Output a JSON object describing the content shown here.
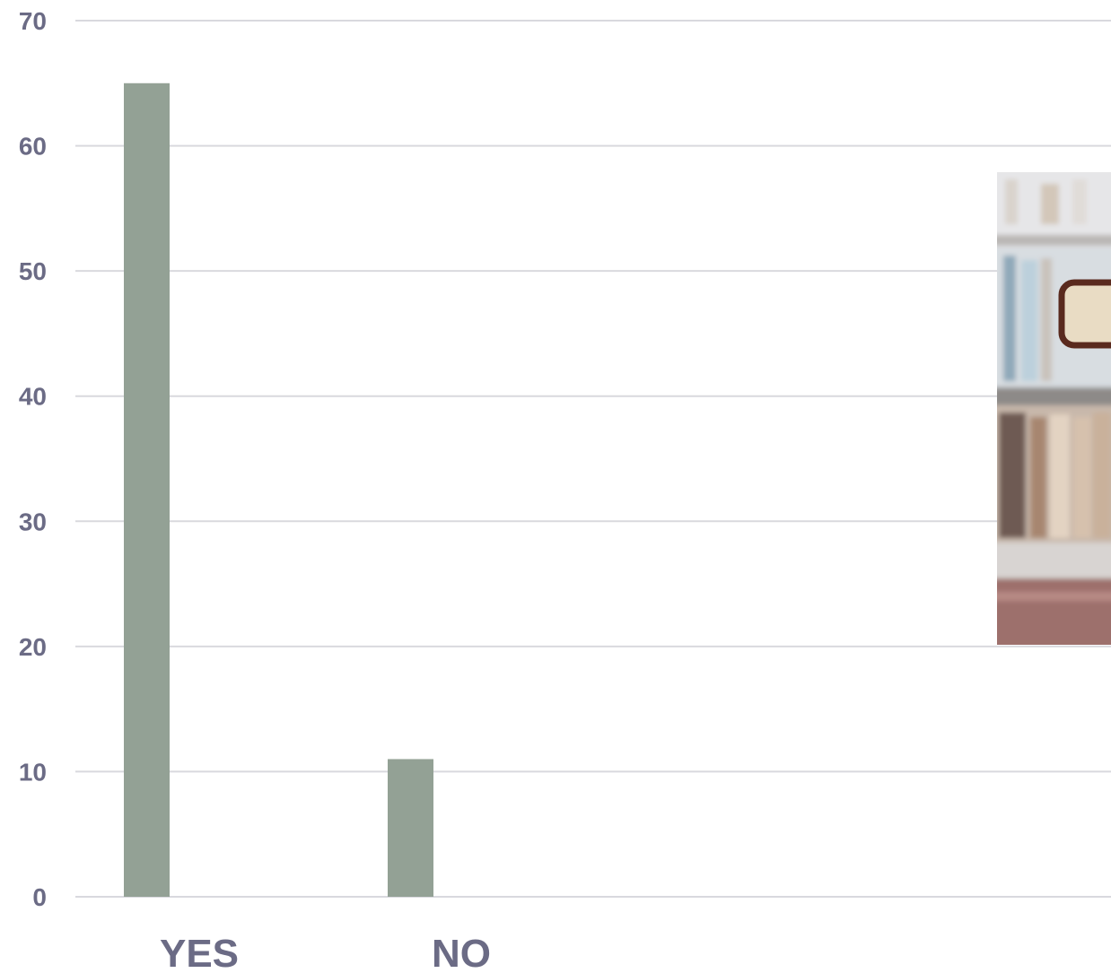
{
  "chart_data": {
    "type": "bar",
    "categories": [
      "YES",
      "NO"
    ],
    "values": [
      65,
      11
    ],
    "ylim": [
      0,
      70
    ],
    "yticks": [
      0,
      10,
      20,
      30,
      40,
      50,
      60,
      70
    ],
    "grid": true,
    "bar_color": "#93a195",
    "title": "",
    "xlabel": "",
    "ylabel": ""
  },
  "photo": {
    "icon": "bookshelf-photo-icon",
    "colors": {
      "shelf_top": "#e9e6e3",
      "books_light": "#bcd0dc",
      "frame": "#5a2a1e",
      "frame_inner": "#e9dcc4",
      "books_dark": "#6e5a52",
      "floor": "#9d706c"
    }
  }
}
